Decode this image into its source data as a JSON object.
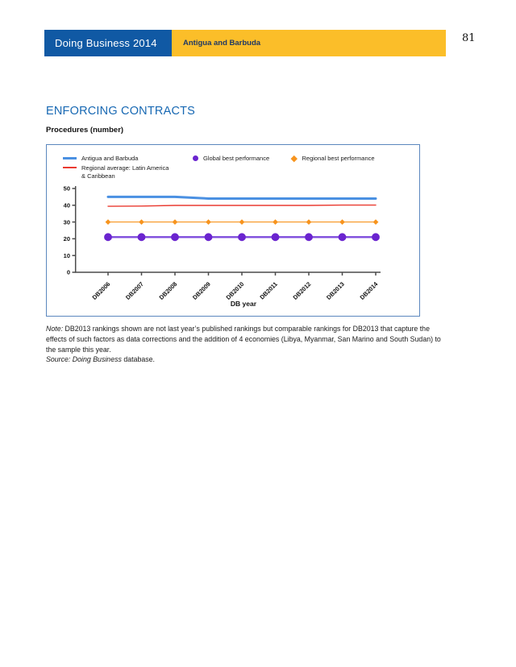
{
  "page": {
    "number": "81"
  },
  "header": {
    "brand": "Doing Business 2014",
    "economy": "Antigua and Barbuda",
    "brand_bg": "#1059a4",
    "economy_bg": "#fbbe29",
    "economy_text_color": "#1f3864"
  },
  "section": {
    "title": "ENFORCING CONTRACTS",
    "title_color": "#1768b3",
    "subtitle": "Procedures (number)"
  },
  "chart_data": {
    "type": "line",
    "title": "Procedures (number)",
    "xlabel": "DB year",
    "ylabel": "",
    "ylim": [
      0,
      50
    ],
    "yticks": [
      0,
      10,
      20,
      30,
      40,
      50
    ],
    "grid": false,
    "legend_position": "top-left",
    "border_color": "#5b87be",
    "axis_color": "#4a4a4a",
    "categories": [
      "DB2006",
      "DB2007",
      "DB2008",
      "DB2009",
      "DB2010",
      "DB2011",
      "DB2012",
      "DB2013",
      "DB2014"
    ],
    "series": [
      {
        "name": "Regional best performance",
        "color": "#f7941e",
        "marker": "diamond",
        "line_width": 1.1,
        "values": [
          30,
          30,
          30,
          30,
          30,
          30,
          30,
          30,
          30
        ]
      },
      {
        "name": "Global best performance",
        "color": "#6a24cf",
        "line_color": "#7e4bdc",
        "marker": "circle",
        "line_width": 2.4,
        "values": [
          21,
          21,
          21,
          21,
          21,
          21,
          21,
          21,
          21
        ]
      },
      {
        "name": "Regional average: Latin America & Caribbean",
        "color": "#ea3a30",
        "marker": "none",
        "line_width": 1.4,
        "values": [
          39.4,
          39.5,
          39.9,
          39.9,
          39.9,
          39.9,
          39.9,
          40.1,
          40.1
        ]
      },
      {
        "name": "Antigua and Barbuda",
        "color": "#4a90e2",
        "marker": "none",
        "line_width": 3,
        "values": [
          45,
          45,
          45,
          44,
          44,
          44,
          44,
          44,
          44
        ]
      }
    ],
    "legend": [
      {
        "label": "Antigua and Barbuda",
        "label2": ""
      },
      {
        "label": "Regional average: Latin America",
        "label2": "& Caribbean"
      },
      {
        "label": "Global best performance",
        "label2": ""
      },
      {
        "label": "Regional best performance",
        "label2": ""
      }
    ]
  },
  "note": {
    "label": "Note:",
    "text": " DB2013 rankings shown are not last year’s published rankings but comparable rankings for DB2013 that capture the effects of such factors as data corrections and the addition of 4 economies (Libya, Myanmar, San Marino and South Sudan) to the sample this year.",
    "source_label": "Source: Doing Business",
    "source_text": " database."
  }
}
